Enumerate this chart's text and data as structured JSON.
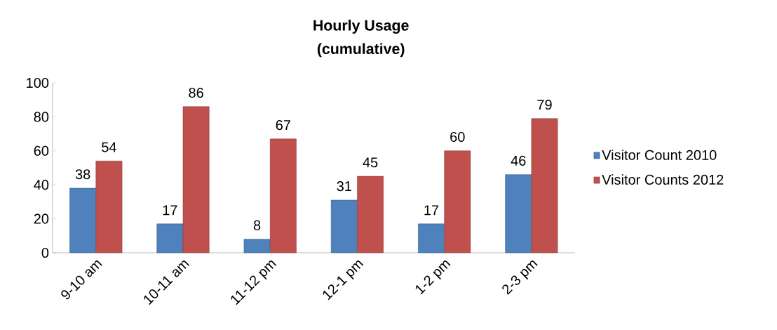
{
  "chart_data": {
    "type": "bar",
    "title": "Hourly Usage",
    "subtitle": "(cumulative)",
    "categories": [
      "9-10 am",
      "10-11 am",
      "11-12 pm",
      "12-1 pm",
      "1-2 pm",
      "2-3 pm"
    ],
    "series": [
      {
        "name": "Visitor Count 2010",
        "color": "#4f81bd",
        "values": [
          38,
          17,
          8,
          31,
          17,
          46
        ]
      },
      {
        "name": "Visitor Counts 2012",
        "color": "#c0504d",
        "values": [
          54,
          86,
          67,
          45,
          60,
          79
        ]
      }
    ],
    "ylim": [
      0,
      100
    ],
    "yticks": [
      0,
      20,
      40,
      60,
      80,
      100
    ],
    "data_labels": true,
    "legend": "right"
  }
}
